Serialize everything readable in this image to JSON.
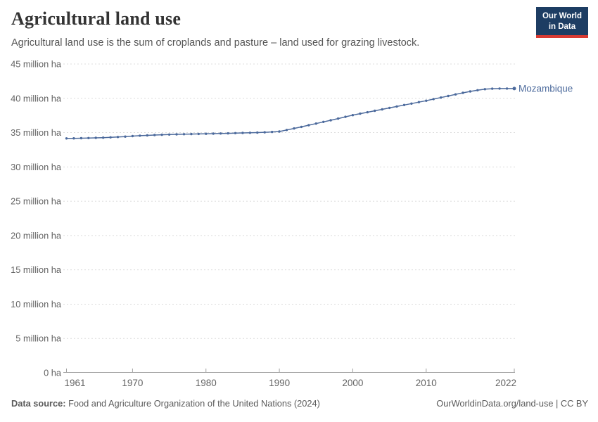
{
  "header": {
    "title": "Agricultural land use",
    "subtitle": "Agricultural land use is the sum of croplands and pasture – land used for grazing livestock.",
    "logo": {
      "line1": "Our World",
      "line2": "in Data"
    }
  },
  "footer": {
    "datasource_label": "Data source:",
    "datasource_text": " Food and Agriculture Organization of the United Nations (2024)",
    "link_text": "OurWorldinData.org/land-use | CC BY"
  },
  "colors": {
    "line": "#4C6A9C",
    "entity_label": "#4C6A9C",
    "logo_bg": "#1d3d63",
    "logo_accent": "#d93a32",
    "grid": "#dcdcdc",
    "axis": "#a1a1a1",
    "tick_label": "#636363",
    "title": "#333333",
    "subtitle": "#555555",
    "footer": "#5b5b5b"
  },
  "chart_data": {
    "type": "line",
    "title": "Agricultural land use",
    "unit": "million ha",
    "grid": true,
    "legend_position": "end-of-line",
    "ylim": [
      0,
      45
    ],
    "x": [
      1961,
      1962,
      1963,
      1964,
      1965,
      1966,
      1967,
      1968,
      1969,
      1970,
      1971,
      1972,
      1973,
      1974,
      1975,
      1976,
      1977,
      1978,
      1979,
      1980,
      1981,
      1982,
      1983,
      1984,
      1985,
      1986,
      1987,
      1988,
      1989,
      1990,
      1991,
      1992,
      1993,
      1994,
      1995,
      1996,
      1997,
      1998,
      1999,
      2000,
      2001,
      2002,
      2003,
      2004,
      2005,
      2006,
      2007,
      2008,
      2009,
      2010,
      2011,
      2012,
      2013,
      2014,
      2015,
      2016,
      2017,
      2018,
      2019,
      2020,
      2021,
      2022
    ],
    "series": [
      {
        "name": "Mozambique",
        "color": "#4C6A9C",
        "values": [
          34.15,
          34.17,
          34.19,
          34.21,
          34.24,
          34.27,
          34.31,
          34.36,
          34.42,
          34.49,
          34.55,
          34.6,
          34.65,
          34.69,
          34.72,
          34.75,
          34.77,
          34.79,
          34.81,
          34.83,
          34.85,
          34.87,
          34.89,
          34.92,
          34.95,
          34.98,
          35.01,
          35.05,
          35.1,
          35.16,
          35.38,
          35.61,
          35.84,
          36.08,
          36.32,
          36.56,
          36.8,
          37.05,
          37.3,
          37.55,
          37.76,
          37.97,
          38.18,
          38.39,
          38.6,
          38.81,
          39.02,
          39.23,
          39.44,
          39.65,
          39.88,
          40.11,
          40.34,
          40.57,
          40.8,
          41.0,
          41.18,
          41.33,
          41.4,
          41.42,
          41.42,
          41.42
        ]
      }
    ],
    "yticks": [
      {
        "value": 0,
        "label": "0 ha"
      },
      {
        "value": 5,
        "label": "5 million ha"
      },
      {
        "value": 10,
        "label": "10 million ha"
      },
      {
        "value": 15,
        "label": "15 million ha"
      },
      {
        "value": 20,
        "label": "20 million ha"
      },
      {
        "value": 25,
        "label": "25 million ha"
      },
      {
        "value": 30,
        "label": "30 million ha"
      },
      {
        "value": 35,
        "label": "35 million ha"
      },
      {
        "value": 40,
        "label": "40 million ha"
      },
      {
        "value": 45,
        "label": "45 million ha"
      }
    ],
    "xticks": [
      {
        "value": 1961,
        "label": "1961"
      },
      {
        "value": 1970,
        "label": "1970"
      },
      {
        "value": 1980,
        "label": "1980"
      },
      {
        "value": 1990,
        "label": "1990"
      },
      {
        "value": 2000,
        "label": "2000"
      },
      {
        "value": 2010,
        "label": "2010"
      },
      {
        "value": 2022,
        "label": "2022"
      }
    ]
  }
}
